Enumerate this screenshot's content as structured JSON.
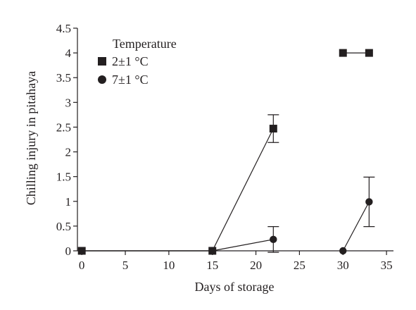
{
  "chart_data": {
    "type": "line",
    "title": "",
    "xlabel": "Days of storage",
    "ylabel": "Chilling injury in pitahaya",
    "xlim": [
      -0.5,
      35.8
    ],
    "ylim": [
      0,
      4.5
    ],
    "x_ticks": [
      0,
      5,
      10,
      15,
      20,
      25,
      30,
      35
    ],
    "x_tick_labels": [
      "0",
      "5",
      "10",
      "15",
      "20",
      "25",
      "30",
      "35"
    ],
    "y_ticks": [
      0,
      0.5,
      1,
      1.5,
      2,
      2.5,
      3,
      3.5,
      4,
      4.5
    ],
    "y_tick_labels": [
      "0",
      "0.5",
      "1",
      "1.5",
      "2",
      "2.5",
      "3",
      "3.5",
      "4",
      "4.5"
    ],
    "grid": false,
    "legend": {
      "title": "Temperature",
      "placement": "top-left"
    },
    "series": [
      {
        "name": "2±1 °C",
        "marker": "square",
        "color": "#231f20",
        "segments": [
          [
            {
              "x": 0,
              "y": 0
            },
            {
              "x": 15,
              "y": 0
            },
            {
              "x": 22,
              "y": 2.47,
              "err": 0.28
            }
          ],
          [
            {
              "x": 30,
              "y": 4.0
            },
            {
              "x": 33,
              "y": 4.0
            }
          ]
        ]
      },
      {
        "name": "7±1 °C",
        "marker": "circle",
        "color": "#231f20",
        "segments": [
          [
            {
              "x": 0,
              "y": 0
            },
            {
              "x": 15,
              "y": 0
            },
            {
              "x": 22,
              "y": 0.23,
              "err": 0.26
            }
          ],
          [
            {
              "x": 30,
              "y": 0
            },
            {
              "x": 33,
              "y": 0.99,
              "err": 0.5
            }
          ]
        ]
      }
    ]
  }
}
